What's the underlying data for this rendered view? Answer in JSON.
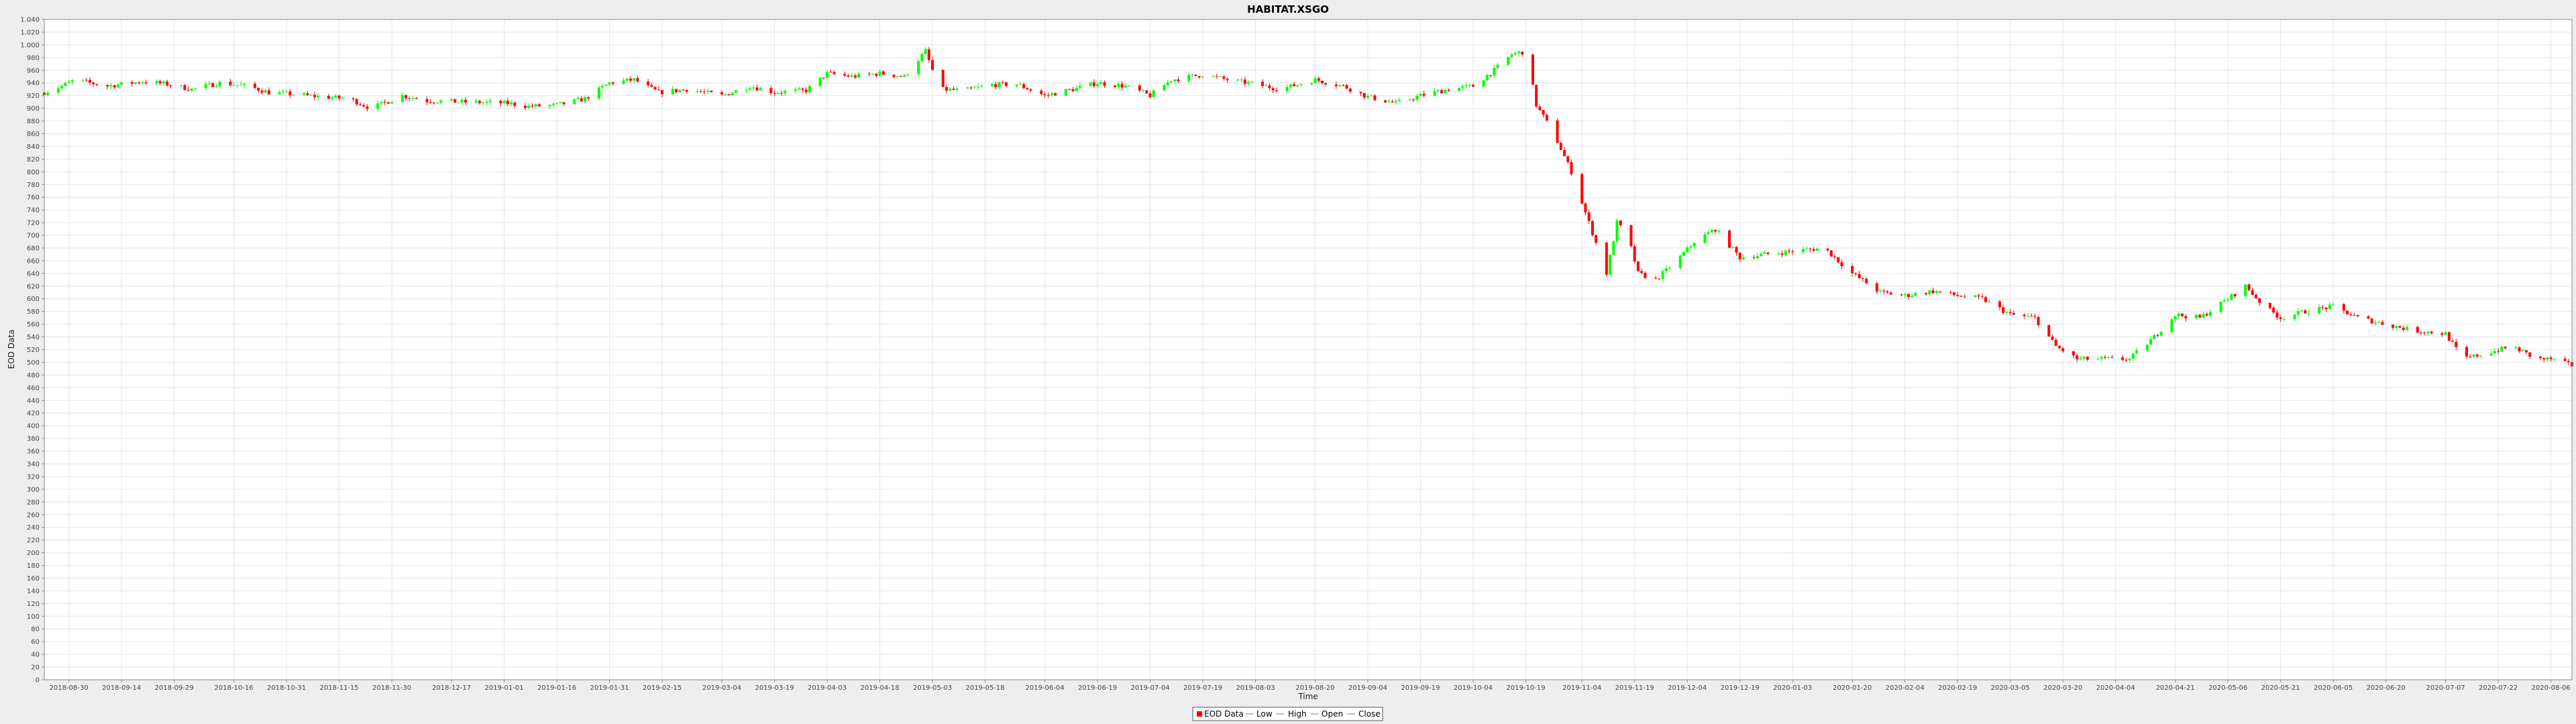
{
  "chart_data": {
    "type": "candlestick",
    "title": "HABITAT.XSGO",
    "xlabel": "Time",
    "ylabel": "EOD Data",
    "ylim": [
      0,
      1040
    ],
    "y_ticks": [
      0,
      20,
      40,
      60,
      80,
      100,
      120,
      140,
      160,
      180,
      200,
      220,
      240,
      260,
      280,
      300,
      320,
      340,
      360,
      380,
      400,
      420,
      440,
      460,
      480,
      500,
      520,
      540,
      560,
      580,
      600,
      620,
      640,
      660,
      680,
      700,
      720,
      740,
      760,
      780,
      800,
      820,
      840,
      860,
      880,
      900,
      920,
      940,
      960,
      980,
      1000,
      1020,
      1040
    ],
    "y_tick_labels": [
      "0",
      "20",
      "40",
      "60",
      "80",
      "100",
      "120",
      "140",
      "160",
      "180",
      "200",
      "220",
      "240",
      "260",
      "280",
      "300",
      "320",
      "340",
      "360",
      "380",
      "400",
      "420",
      "440",
      "460",
      "480",
      "500",
      "520",
      "540",
      "560",
      "580",
      "600",
      "620",
      "640",
      "660",
      "680",
      "700",
      "720",
      "740",
      "760",
      "780",
      "800",
      "820",
      "840",
      "860",
      "880",
      "900",
      "920",
      "940",
      "960",
      "980",
      "1.000",
      "1.020",
      "1.040"
    ],
    "x_range": [
      "2018-08-23",
      "2020-08-12"
    ],
    "x_ticks": [
      "2018-08-30",
      "2018-09-14",
      "2018-09-29",
      "2018-10-16",
      "2018-10-31",
      "2018-11-15",
      "2018-11-30",
      "2018-12-17",
      "2019-01-01",
      "2019-01-16",
      "2019-01-31",
      "2019-02-15",
      "2019-03-04",
      "2019-03-19",
      "2019-04-03",
      "2019-04-18",
      "2019-05-03",
      "2019-05-18",
      "2019-06-04",
      "2019-06-19",
      "2019-07-04",
      "2019-07-19",
      "2019-08-03",
      "2019-08-20",
      "2019-09-04",
      "2019-09-19",
      "2019-10-04",
      "2019-10-19",
      "2019-11-04",
      "2019-11-19",
      "2019-12-04",
      "2019-12-19",
      "2020-01-03",
      "2020-01-20",
      "2020-02-04",
      "2020-02-19",
      "2020-03-05",
      "2020-03-20",
      "2020-04-04",
      "2020-04-21",
      "2020-05-06",
      "2020-05-21",
      "2020-06-05",
      "2020-06-20",
      "2020-07-07",
      "2020-07-22",
      "2020-08-06"
    ],
    "grid": true,
    "legend_position": "bottom-center",
    "legend": [
      "EOD Data",
      "Low",
      "High",
      "Open",
      "Close"
    ],
    "colors": {
      "up": "#00ff00",
      "down": "#ff0000",
      "frame": "#000000",
      "grid": "#e6e6e6",
      "plot_bg": "#ffffff"
    },
    "anchor_closes": [
      [
        "2018-08-23",
        925
      ],
      [
        "2018-08-28",
        935
      ],
      [
        "2018-09-01",
        945
      ],
      [
        "2018-09-05",
        940
      ],
      [
        "2018-09-10",
        935
      ],
      [
        "2018-09-14",
        938
      ],
      [
        "2018-09-20",
        942
      ],
      [
        "2018-09-27",
        938
      ],
      [
        "2018-10-04",
        930
      ],
      [
        "2018-10-12",
        940
      ],
      [
        "2018-10-20",
        935
      ],
      [
        "2018-10-26",
        925
      ],
      [
        "2018-11-02",
        922
      ],
      [
        "2018-11-10",
        918
      ],
      [
        "2018-11-18",
        915
      ],
      [
        "2018-11-24",
        900
      ],
      [
        "2018-12-03",
        920
      ],
      [
        "2018-12-10",
        912
      ],
      [
        "2018-12-20",
        910
      ],
      [
        "2019-01-02",
        908
      ],
      [
        "2019-01-08",
        903
      ],
      [
        "2019-01-16",
        905
      ],
      [
        "2019-01-24",
        915
      ],
      [
        "2019-01-31",
        940
      ],
      [
        "2019-02-07",
        945
      ],
      [
        "2019-02-14",
        925
      ],
      [
        "2019-02-22",
        930
      ],
      [
        "2019-03-04",
        920
      ],
      [
        "2019-03-12",
        935
      ],
      [
        "2019-03-19",
        925
      ],
      [
        "2019-03-28",
        928
      ],
      [
        "2019-04-03",
        955
      ],
      [
        "2019-04-10",
        950
      ],
      [
        "2019-04-18",
        955
      ],
      [
        "2019-04-25",
        950
      ],
      [
        "2019-05-01",
        990
      ],
      [
        "2019-05-05",
        930
      ],
      [
        "2019-05-12",
        928
      ],
      [
        "2019-05-20",
        937
      ],
      [
        "2019-05-27",
        938
      ],
      [
        "2019-06-04",
        920
      ],
      [
        "2019-06-12",
        930
      ],
      [
        "2019-06-19",
        940
      ],
      [
        "2019-06-27",
        935
      ],
      [
        "2019-07-04",
        920
      ],
      [
        "2019-07-10",
        945
      ],
      [
        "2019-07-19",
        953
      ],
      [
        "2019-07-26",
        945
      ],
      [
        "2019-08-03",
        938
      ],
      [
        "2019-08-10",
        930
      ],
      [
        "2019-08-20",
        945
      ],
      [
        "2019-08-28",
        935
      ],
      [
        "2019-09-04",
        918
      ],
      [
        "2019-09-12",
        908
      ],
      [
        "2019-09-19",
        920
      ],
      [
        "2019-09-27",
        930
      ],
      [
        "2019-10-04",
        935
      ],
      [
        "2019-10-10",
        960
      ],
      [
        "2019-10-15",
        985
      ],
      [
        "2019-10-19",
        990
      ],
      [
        "2019-10-22",
        905
      ],
      [
        "2019-10-27",
        860
      ],
      [
        "2019-11-01",
        800
      ],
      [
        "2019-11-06",
        720
      ],
      [
        "2019-11-11",
        640
      ],
      [
        "2019-11-14",
        720
      ],
      [
        "2019-11-17",
        700
      ],
      [
        "2019-11-20",
        640
      ],
      [
        "2019-11-25",
        630
      ],
      [
        "2019-12-01",
        660
      ],
      [
        "2019-12-06",
        690
      ],
      [
        "2019-12-12",
        710
      ],
      [
        "2019-12-19",
        665
      ],
      [
        "2019-12-26",
        670
      ],
      [
        "2020-01-03",
        675
      ],
      [
        "2020-01-12",
        680
      ],
      [
        "2020-01-20",
        640
      ],
      [
        "2020-01-28",
        610
      ],
      [
        "2020-02-04",
        605
      ],
      [
        "2020-02-12",
        612
      ],
      [
        "2020-02-19",
        605
      ],
      [
        "2020-02-26",
        600
      ],
      [
        "2020-03-05",
        575
      ],
      [
        "2020-03-12",
        570
      ],
      [
        "2020-03-18",
        525
      ],
      [
        "2020-03-24",
        505
      ],
      [
        "2020-04-01",
        505
      ],
      [
        "2020-04-08",
        505
      ],
      [
        "2020-04-15",
        540
      ],
      [
        "2020-04-21",
        575
      ],
      [
        "2020-04-28",
        570
      ],
      [
        "2020-05-06",
        600
      ],
      [
        "2020-05-11",
        620
      ],
      [
        "2020-05-16",
        590
      ],
      [
        "2020-05-21",
        570
      ],
      [
        "2020-05-28",
        580
      ],
      [
        "2020-06-05",
        588
      ],
      [
        "2020-06-12",
        570
      ],
      [
        "2020-06-20",
        560
      ],
      [
        "2020-06-28",
        550
      ],
      [
        "2020-07-07",
        545
      ],
      [
        "2020-07-12",
        505
      ],
      [
        "2020-07-19",
        515
      ],
      [
        "2020-07-26",
        525
      ],
      [
        "2020-08-02",
        505
      ],
      [
        "2020-08-06",
        505
      ],
      [
        "2020-08-12",
        495
      ]
    ]
  }
}
